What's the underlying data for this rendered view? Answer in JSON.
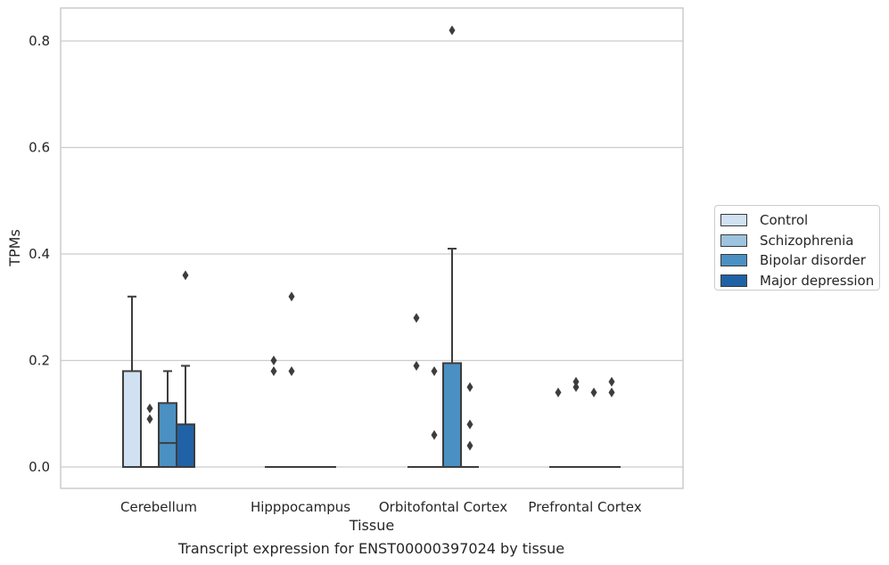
{
  "chart_data": {
    "type": "box",
    "xlabel": "Tissue",
    "ylabel": "TPMs",
    "caption": "Transcript expression for ENST00000397024 by tissue",
    "categories": [
      "Cerebellum",
      "Hipppocampus",
      "Orbitofontal Cortex",
      "Prefrontal Cortex"
    ],
    "ylim": [
      -0.04,
      0.86
    ],
    "yticks": [
      0.0,
      0.2,
      0.4,
      0.6,
      0.8
    ],
    "ytick_labels": [
      "0.0",
      "0.2",
      "0.4",
      "0.6",
      "0.8"
    ],
    "grid": true,
    "legend_position": "right",
    "series": [
      {
        "name": "Control",
        "color": "#d0e1f2",
        "boxes": [
          {
            "category": "Cerebellum",
            "q1": 0.0,
            "median": 0.0,
            "q3": 0.18,
            "whisker_low": 0.0,
            "whisker_high": 0.32,
            "outliers": []
          },
          {
            "category": "Hipppocampus",
            "q1": 0.0,
            "median": 0.0,
            "q3": 0.0,
            "whisker_low": 0.0,
            "whisker_high": 0.0,
            "outliers": [
              0.2,
              0.18
            ]
          },
          {
            "category": "Orbitofontal Cortex",
            "q1": 0.0,
            "median": 0.0,
            "q3": 0.0,
            "whisker_low": 0.0,
            "whisker_high": 0.0,
            "outliers": [
              0.28,
              0.19
            ]
          },
          {
            "category": "Prefrontal Cortex",
            "q1": 0.0,
            "median": 0.0,
            "q3": 0.0,
            "whisker_low": 0.0,
            "whisker_high": 0.0,
            "outliers": [
              0.14
            ]
          }
        ]
      },
      {
        "name": "Schizophrenia",
        "color": "#9dc3de",
        "boxes": [
          {
            "category": "Cerebellum",
            "q1": 0.0,
            "median": 0.0,
            "q3": 0.0,
            "whisker_low": 0.0,
            "whisker_high": 0.0,
            "outliers": [
              0.11,
              0.09
            ]
          },
          {
            "category": "Hipppocampus",
            "q1": 0.0,
            "median": 0.0,
            "q3": 0.0,
            "whisker_low": 0.0,
            "whisker_high": 0.0,
            "outliers": [
              0.32,
              0.18
            ]
          },
          {
            "category": "Orbitofontal Cortex",
            "q1": 0.0,
            "median": 0.0,
            "q3": 0.0,
            "whisker_low": 0.0,
            "whisker_high": 0.0,
            "outliers": [
              0.18,
              0.06
            ]
          },
          {
            "category": "Prefrontal Cortex",
            "q1": 0.0,
            "median": 0.0,
            "q3": 0.0,
            "whisker_low": 0.0,
            "whisker_high": 0.0,
            "outliers": [
              0.16,
              0.15
            ]
          }
        ]
      },
      {
        "name": "Bipolar disorder",
        "color": "#4a90c2",
        "boxes": [
          {
            "category": "Cerebellum",
            "q1": 0.0,
            "median": 0.045,
            "q3": 0.12,
            "whisker_low": 0.0,
            "whisker_high": 0.18,
            "outliers": []
          },
          {
            "category": "Hipppocampus",
            "q1": 0.0,
            "median": 0.0,
            "q3": 0.0,
            "whisker_low": 0.0,
            "whisker_high": 0.0,
            "outliers": []
          },
          {
            "category": "Orbitofontal Cortex",
            "q1": 0.0,
            "median": 0.0,
            "q3": 0.195,
            "whisker_low": 0.0,
            "whisker_high": 0.41,
            "outliers": [
              0.82
            ]
          },
          {
            "category": "Prefrontal Cortex",
            "q1": 0.0,
            "median": 0.0,
            "q3": 0.0,
            "whisker_low": 0.0,
            "whisker_high": 0.0,
            "outliers": [
              0.14
            ]
          }
        ]
      },
      {
        "name": "Major depression",
        "color": "#1f62a6",
        "boxes": [
          {
            "category": "Cerebellum",
            "q1": 0.0,
            "median": 0.0,
            "q3": 0.08,
            "whisker_low": 0.0,
            "whisker_high": 0.19,
            "outliers": [
              0.36
            ]
          },
          {
            "category": "Hipppocampus",
            "q1": 0.0,
            "median": 0.0,
            "q3": 0.0,
            "whisker_low": 0.0,
            "whisker_high": 0.0,
            "outliers": []
          },
          {
            "category": "Orbitofontal Cortex",
            "q1": 0.0,
            "median": 0.0,
            "q3": 0.0,
            "whisker_low": 0.0,
            "whisker_high": 0.0,
            "outliers": [
              0.15,
              0.08,
              0.04
            ]
          },
          {
            "category": "Prefrontal Cortex",
            "q1": 0.0,
            "median": 0.0,
            "q3": 0.0,
            "whisker_low": 0.0,
            "whisker_high": 0.0,
            "outliers": [
              0.16,
              0.14
            ]
          }
        ]
      }
    ]
  }
}
